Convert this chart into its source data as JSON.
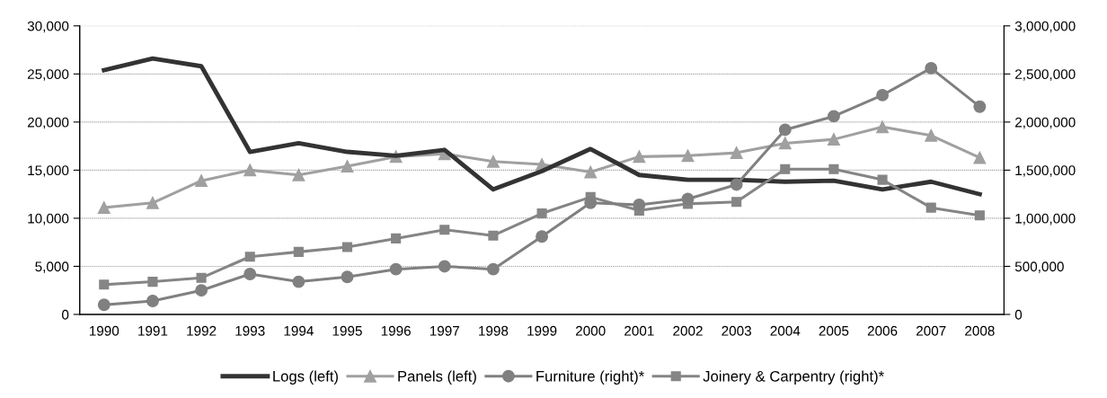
{
  "chart_data": {
    "type": "line",
    "categories": [
      "1990",
      "1991",
      "1992",
      "1993",
      "1994",
      "1995",
      "1996",
      "1997",
      "1998",
      "1999",
      "2000",
      "2001",
      "2002",
      "2003",
      "2004",
      "2005",
      "2006",
      "2007",
      "2008"
    ],
    "series": [
      {
        "name": "Logs (left)",
        "color": "#333333",
        "marker": "none",
        "values": [
          25400,
          26600,
          25800,
          16900,
          17800,
          16900,
          16500,
          17100,
          13000,
          14900,
          17200,
          14500,
          14000,
          14000,
          13800,
          13900,
          13000,
          13800,
          12500
        ]
      },
      {
        "name": "Panels (left)",
        "color": "#a0a0a0",
        "marker": "triangle",
        "values": [
          11100,
          11600,
          13900,
          15000,
          14500,
          15400,
          16400,
          16700,
          15900,
          15600,
          14800,
          16400,
          16500,
          16800,
          17800,
          18200,
          19500,
          18600,
          16300
        ]
      },
      {
        "name": "Furniture (right)*",
        "color": "#808080",
        "marker": "circle",
        "axis": "y2",
        "values": [
          100000,
          140000,
          250000,
          420000,
          340000,
          390000,
          470000,
          500000,
          470000,
          810000,
          1160000,
          1140000,
          1200000,
          1350000,
          1920000,
          2060000,
          2280000,
          2560000,
          2160000
        ]
      },
      {
        "name": "Joinery & Carpentry (right)*",
        "color": "#858585",
        "marker": "square",
        "axis": "y2",
        "values": [
          310000,
          340000,
          380000,
          600000,
          650000,
          700000,
          790000,
          880000,
          820000,
          1050000,
          1220000,
          1080000,
          1150000,
          1170000,
          1510000,
          1510000,
          1400000,
          1110000,
          1030000
        ]
      }
    ],
    "ylim": [
      0,
      30000
    ],
    "yticks": [
      {
        "value": 0,
        "label": "0"
      },
      {
        "value": 5000,
        "label": "5,000"
      },
      {
        "value": 10000,
        "label": "10,000"
      },
      {
        "value": 15000,
        "label": "15,000"
      },
      {
        "value": 20000,
        "label": "20,000"
      },
      {
        "value": 25000,
        "label": "25,000"
      },
      {
        "value": 30000,
        "label": "30,000"
      }
    ],
    "y2lim": [
      0,
      3000000
    ],
    "y2ticks": [
      {
        "value": 0,
        "label": "0"
      },
      {
        "value": 500000,
        "label": "500,000"
      },
      {
        "value": 1000000,
        "label": "1,000,000"
      },
      {
        "value": 1500000,
        "label": "1,500,000"
      },
      {
        "value": 2000000,
        "label": "2,000,000"
      },
      {
        "value": 2500000,
        "label": "2,500,000"
      },
      {
        "value": 3000000,
        "label": "3,000,000"
      }
    ],
    "grid": "y",
    "legend": "bottom",
    "line_style": "solid"
  }
}
